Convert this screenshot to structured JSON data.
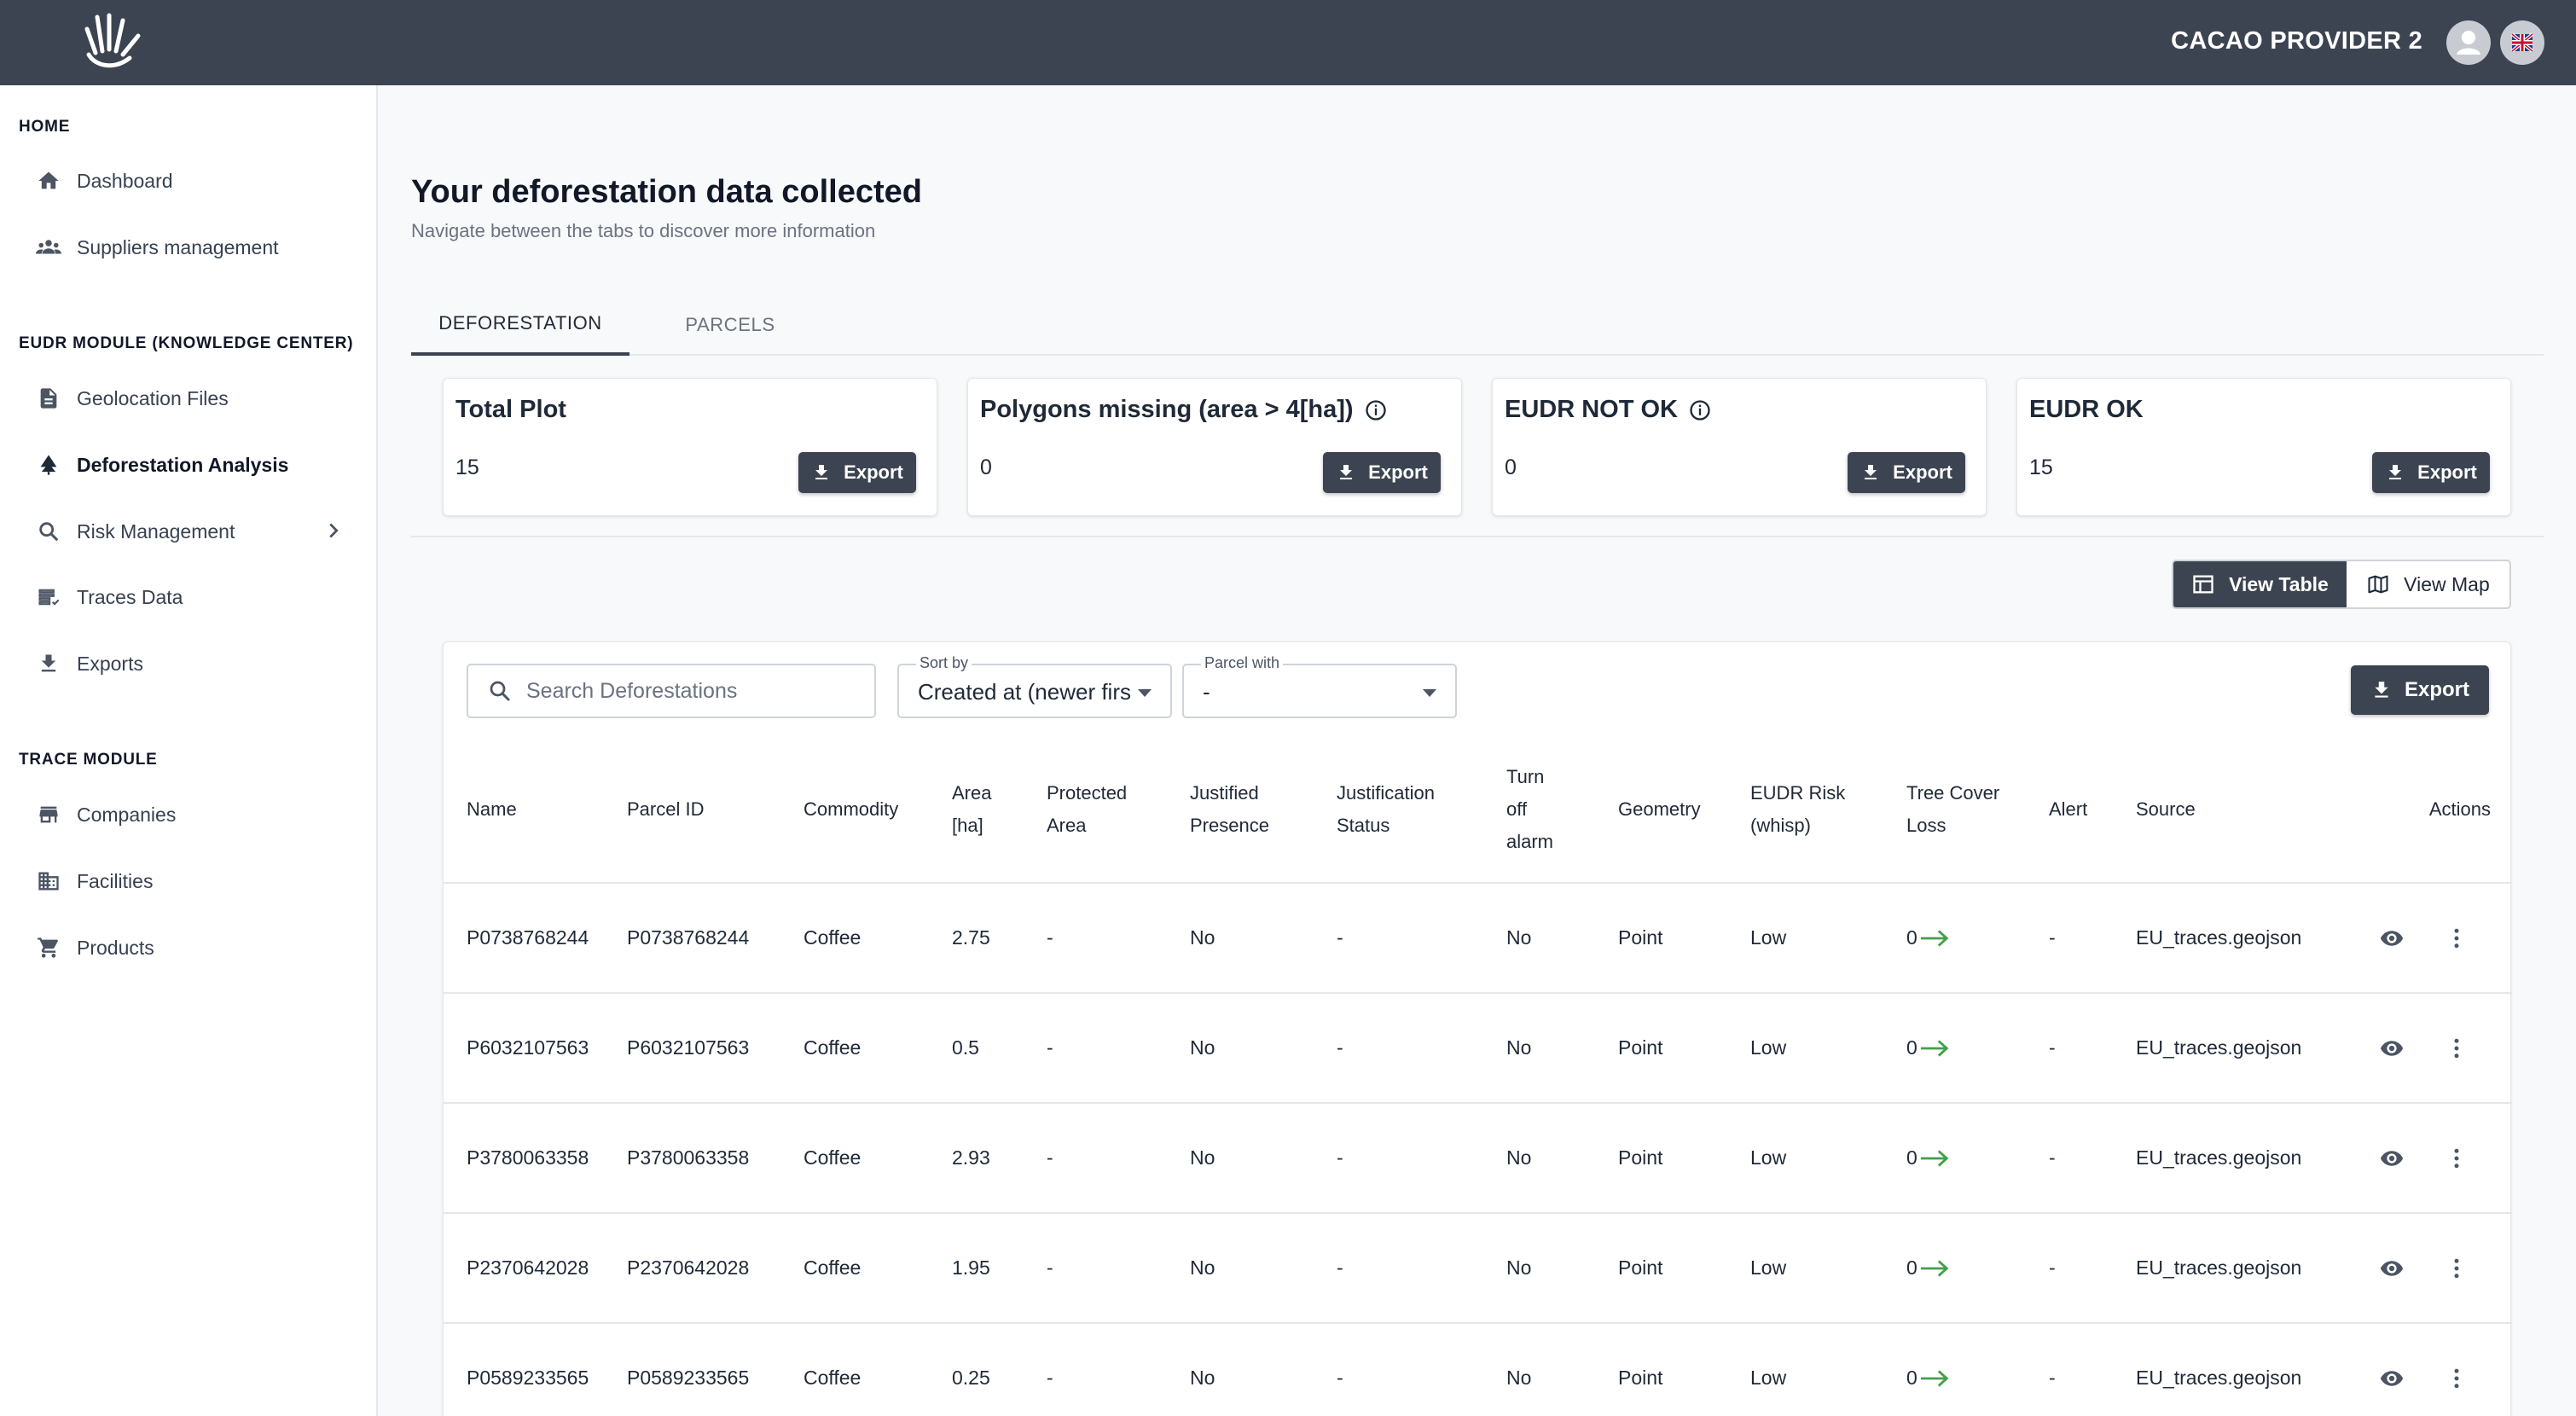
{
  "header": {
    "org_name": "CACAO PROVIDER 2",
    "logo_icon": "hand-logo-icon",
    "avatar_icon": "user-avatar-icon",
    "language_icon": "uk-flag-icon"
  },
  "sidebar": {
    "sections": [
      {
        "title": "HOME",
        "items": [
          {
            "label": "Dashboard",
            "icon": "home-icon"
          },
          {
            "label": "Suppliers management",
            "icon": "people-icon"
          }
        ]
      },
      {
        "title": "EUDR MODULE  (KNOWLEDGE CENTER)",
        "items": [
          {
            "label": "Geolocation Files",
            "icon": "file-icon"
          },
          {
            "label": "Deforestation Analysis",
            "icon": "tree-icon",
            "active": true
          },
          {
            "label": "Risk Management",
            "icon": "search-icon",
            "has_submenu": true
          },
          {
            "label": "Traces Data",
            "icon": "list-icon"
          },
          {
            "label": "Exports",
            "icon": "download-icon"
          }
        ]
      },
      {
        "title": "TRACE MODULE",
        "items": [
          {
            "label": "Companies",
            "icon": "store-icon"
          },
          {
            "label": "Facilities",
            "icon": "building-icon"
          },
          {
            "label": "Products",
            "icon": "cart-icon"
          }
        ]
      }
    ]
  },
  "page": {
    "title": "Your deforestation data collected",
    "subtitle": "Navigate between the tabs to discover more information"
  },
  "tabs": [
    {
      "label": "DEFORESTATION",
      "active": true
    },
    {
      "label": "PARCELS",
      "active": false
    }
  ],
  "cards": [
    {
      "title": "Total Plot",
      "value": "15",
      "has_info": false,
      "export_label": "Export"
    },
    {
      "title": "Polygons missing (area > 4[ha])",
      "value": "0",
      "has_info": true,
      "export_label": "Export"
    },
    {
      "title": "EUDR NOT OK",
      "value": "0",
      "has_info": true,
      "export_label": "Export"
    },
    {
      "title": "EUDR OK",
      "value": "15",
      "has_info": false,
      "export_label": "Export"
    }
  ],
  "view_toggle": {
    "table_label": "View Table",
    "map_label": "View Map",
    "active": "table"
  },
  "filters": {
    "search_placeholder": "Search Deforestations",
    "search_value": "",
    "sort_label": "Sort by",
    "sort_value": "Created at (newer first)",
    "parcel_label": "Parcel with",
    "parcel_value": "-",
    "export_label": "Export"
  },
  "table": {
    "columns": [
      "Name",
      "Parcel ID",
      "Commodity",
      "Area [ha]",
      "Protected Area",
      "Justified Presence",
      "Justification Status",
      "Turn off alarm",
      "Geometry",
      "EUDR Risk (whisp)",
      "Tree Cover Loss",
      "Alert",
      "Source",
      "Actions"
    ],
    "rows": [
      {
        "name": "P0738768244",
        "parcel_id": "P0738768244",
        "commodity": "Coffee",
        "area": "2.75",
        "protected": "-",
        "justified": "No",
        "justification_status": "-",
        "turn_off_alarm": "No",
        "geometry": "Point",
        "risk": "Low",
        "tree_cover_loss": "0",
        "alert": "-",
        "source": "EU_traces.geojson"
      },
      {
        "name": "P6032107563",
        "parcel_id": "P6032107563",
        "commodity": "Coffee",
        "area": "0.5",
        "protected": "-",
        "justified": "No",
        "justification_status": "-",
        "turn_off_alarm": "No",
        "geometry": "Point",
        "risk": "Low",
        "tree_cover_loss": "0",
        "alert": "-",
        "source": "EU_traces.geojson"
      },
      {
        "name": "P3780063358",
        "parcel_id": "P3780063358",
        "commodity": "Coffee",
        "area": "2.93",
        "protected": "-",
        "justified": "No",
        "justification_status": "-",
        "turn_off_alarm": "No",
        "geometry": "Point",
        "risk": "Low",
        "tree_cover_loss": "0",
        "alert": "-",
        "source": "EU_traces.geojson"
      },
      {
        "name": "P2370642028",
        "parcel_id": "P2370642028",
        "commodity": "Coffee",
        "area": "1.95",
        "protected": "-",
        "justified": "No",
        "justification_status": "-",
        "turn_off_alarm": "No",
        "geometry": "Point",
        "risk": "Low",
        "tree_cover_loss": "0",
        "alert": "-",
        "source": "EU_traces.geojson"
      },
      {
        "name": "P0589233565",
        "parcel_id": "P0589233565",
        "commodity": "Coffee",
        "area": "0.25",
        "protected": "-",
        "justified": "No",
        "justification_status": "-",
        "turn_off_alarm": "No",
        "geometry": "Point",
        "risk": "Low",
        "tree_cover_loss": "0",
        "alert": "-",
        "source": "EU_traces.geojson"
      }
    ]
  },
  "colors": {
    "header_bg": "#3d4451",
    "accent_dark": "#3d4451",
    "loss_arrow": "#43a047"
  }
}
